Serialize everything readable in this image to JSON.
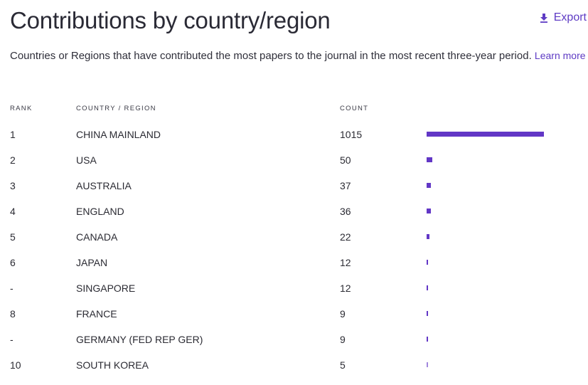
{
  "header": {
    "title": "Contributions by country/region",
    "export_label": "Export",
    "export_icon": "download-icon"
  },
  "description": {
    "text": "Countries or Regions that have contributed the most papers to the journal in the most recent three-year period.",
    "learn_more": "Learn more"
  },
  "table": {
    "columns": {
      "rank": "RANK",
      "country": "COUNTRY / REGION",
      "count": "COUNT"
    },
    "bar_color": "#6237c6",
    "max_count": 1015,
    "rows": [
      {
        "rank": "1",
        "country": "CHINA MAINLAND",
        "count": "1015"
      },
      {
        "rank": "2",
        "country": "USA",
        "count": "50"
      },
      {
        "rank": "3",
        "country": "AUSTRALIA",
        "count": "37"
      },
      {
        "rank": "4",
        "country": "ENGLAND",
        "count": "36"
      },
      {
        "rank": "5",
        "country": "CANADA",
        "count": "22"
      },
      {
        "rank": "6",
        "country": "JAPAN",
        "count": "12"
      },
      {
        "rank": "-",
        "country": "SINGAPORE",
        "count": "12"
      },
      {
        "rank": "8",
        "country": "FRANCE",
        "count": "9"
      },
      {
        "rank": "-",
        "country": "GERMANY (FED REP GER)",
        "count": "9"
      },
      {
        "rank": "10",
        "country": "SOUTH KOREA",
        "count": "5"
      }
    ]
  }
}
